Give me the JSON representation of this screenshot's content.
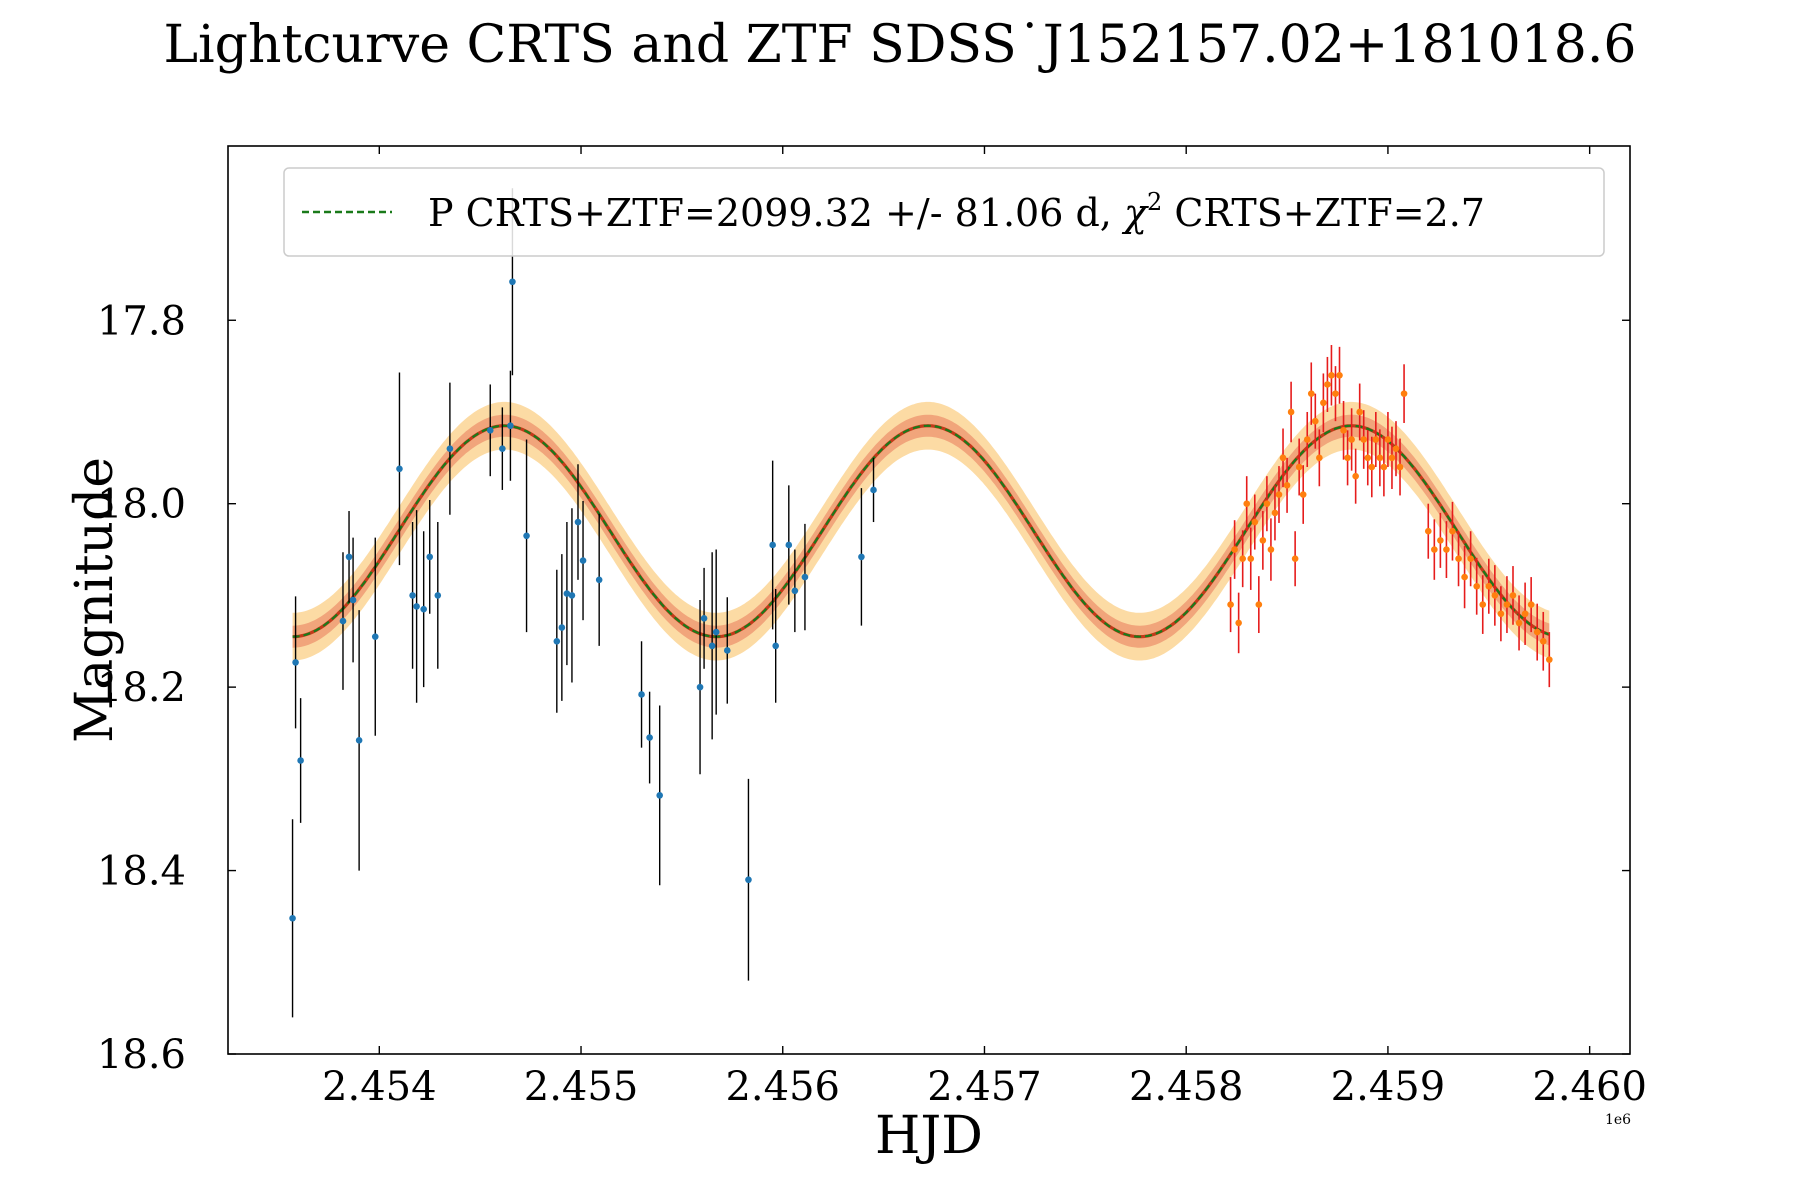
{
  "chart_data": {
    "type": "scatter",
    "title": "Lightcurve CRTS and ZTF SDSS˙J152157.02+181018.6",
    "xlabel": "HJD",
    "ylabel": "Magnitude",
    "x_offset_label": "1e6",
    "x_offset": 2450000,
    "xlim": [
      3250,
      10200
    ],
    "ylim": [
      18.6,
      17.61
    ],
    "y_inverted": true,
    "xticks": [
      4000,
      5000,
      6000,
      7000,
      8000,
      9000,
      10000
    ],
    "xtick_labels": [
      "2.454",
      "2.455",
      "2.456",
      "2.457",
      "2.458",
      "2.459",
      "2.460"
    ],
    "yticks": [
      17.8,
      18.0,
      18.2,
      18.4,
      18.6
    ],
    "ytick_labels": [
      "17.8",
      "18.0",
      "18.2",
      "18.4",
      "18.6"
    ],
    "legend": {
      "position": "top-right",
      "label_prefix": "P CRTS+ZTF=2099.32 +/- 81.06 d, ",
      "chi_symbol": "χ",
      "chi_exp": "2",
      "label_suffix": " CRTS+ZTF=2.7"
    },
    "model": {
      "name": "P CRTS+ZTF",
      "period_days": 2099.32,
      "period_err_days": 81.06,
      "chi2": 2.7,
      "mean_mag": 18.03,
      "amplitude": 0.115,
      "peak_hjd": 4620,
      "x_start": 3570,
      "x_end": 9800,
      "color": "#1a7a1a",
      "band_inner_color": "#e8785a",
      "band_outer_color": "#fcd79a"
    },
    "series": [
      {
        "name": "CRTS",
        "marker_color": "#1f77b4",
        "errorbar_color": "#000000",
        "points": [
          [
            3570,
            18.452,
            0.108
          ],
          [
            3585,
            18.173,
            0.072
          ],
          [
            3610,
            18.28,
            0.068
          ],
          [
            3820,
            18.128,
            0.075
          ],
          [
            3850,
            18.058,
            0.05
          ],
          [
            3870,
            18.105,
            0.068
          ],
          [
            3900,
            18.258,
            0.142
          ],
          [
            3980,
            18.145,
            0.108
          ],
          [
            4100,
            17.962,
            0.105
          ],
          [
            4165,
            18.1,
            0.08
          ],
          [
            4185,
            18.112,
            0.105
          ],
          [
            4220,
            18.115,
            0.085
          ],
          [
            4250,
            18.058,
            0.062
          ],
          [
            4290,
            18.1,
            0.08
          ],
          [
            4350,
            17.94,
            0.072
          ],
          [
            4550,
            17.92,
            0.05
          ],
          [
            4610,
            17.94,
            0.045
          ],
          [
            4650,
            17.915,
            0.06
          ],
          [
            4660,
            17.758,
            0.102
          ],
          [
            4730,
            18.035,
            0.105
          ],
          [
            4880,
            18.15,
            0.078
          ],
          [
            4905,
            18.135,
            0.08
          ],
          [
            4930,
            18.098,
            0.078
          ],
          [
            4955,
            18.1,
            0.095
          ],
          [
            4985,
            18.02,
            0.063
          ],
          [
            5010,
            18.062,
            0.065
          ],
          [
            5090,
            18.083,
            0.072
          ],
          [
            5300,
            18.208,
            0.058
          ],
          [
            5340,
            18.255,
            0.05
          ],
          [
            5390,
            18.318,
            0.098
          ],
          [
            5590,
            18.2,
            0.095
          ],
          [
            5610,
            18.125,
            0.055
          ],
          [
            5650,
            18.155,
            0.102
          ],
          [
            5670,
            18.14,
            0.09
          ],
          [
            5725,
            18.16,
            0.058
          ],
          [
            5830,
            18.41,
            0.11
          ],
          [
            5950,
            18.045,
            0.092
          ],
          [
            5965,
            18.155,
            0.062
          ],
          [
            6030,
            18.045,
            0.065
          ],
          [
            6060,
            18.095,
            0.045
          ],
          [
            6110,
            18.08,
            0.058
          ],
          [
            6390,
            18.058,
            0.075
          ],
          [
            6450,
            17.985,
            0.035
          ]
        ]
      },
      {
        "name": "ZTF",
        "marker_color": "#ff7f0e",
        "errorbar_color": "#e61c1c",
        "points": [
          [
            8220,
            18.11,
            0.03
          ],
          [
            8240,
            18.05,
            0.032
          ],
          [
            8260,
            18.13,
            0.033
          ],
          [
            8280,
            18.06,
            0.031
          ],
          [
            8300,
            18.0,
            0.03
          ],
          [
            8320,
            18.06,
            0.034
          ],
          [
            8340,
            18.02,
            0.03
          ],
          [
            8360,
            18.11,
            0.031
          ],
          [
            8380,
            18.04,
            0.032
          ],
          [
            8400,
            18.0,
            0.03
          ],
          [
            8420,
            18.05,
            0.034
          ],
          [
            8440,
            18.01,
            0.03
          ],
          [
            8460,
            17.99,
            0.031
          ],
          [
            8480,
            17.95,
            0.032
          ],
          [
            8500,
            17.98,
            0.03
          ],
          [
            8520,
            17.9,
            0.033
          ],
          [
            8540,
            18.06,
            0.03
          ],
          [
            8560,
            17.96,
            0.031
          ],
          [
            8580,
            17.99,
            0.032
          ],
          [
            8600,
            17.93,
            0.03
          ],
          [
            8620,
            17.88,
            0.034
          ],
          [
            8640,
            17.91,
            0.03
          ],
          [
            8660,
            17.95,
            0.031
          ],
          [
            8680,
            17.89,
            0.032
          ],
          [
            8700,
            17.87,
            0.03
          ],
          [
            8720,
            17.86,
            0.033
          ],
          [
            8740,
            17.88,
            0.03
          ],
          [
            8760,
            17.86,
            0.031
          ],
          [
            8780,
            17.92,
            0.032
          ],
          [
            8800,
            17.95,
            0.03
          ],
          [
            8820,
            17.93,
            0.034
          ],
          [
            8840,
            17.97,
            0.03
          ],
          [
            8860,
            17.9,
            0.031
          ],
          [
            8880,
            17.93,
            0.032
          ],
          [
            8900,
            17.95,
            0.03
          ],
          [
            8920,
            17.96,
            0.033
          ],
          [
            8940,
            17.93,
            0.03
          ],
          [
            8960,
            17.95,
            0.031
          ],
          [
            8980,
            17.96,
            0.032
          ],
          [
            9000,
            17.93,
            0.03
          ],
          [
            9020,
            17.95,
            0.034
          ],
          [
            9040,
            17.94,
            0.03
          ],
          [
            9060,
            17.96,
            0.031
          ],
          [
            9080,
            17.88,
            0.032
          ],
          [
            9200,
            18.03,
            0.03
          ],
          [
            9230,
            18.05,
            0.033
          ],
          [
            9260,
            18.04,
            0.03
          ],
          [
            9290,
            18.05,
            0.031
          ],
          [
            9320,
            18.03,
            0.032
          ],
          [
            9350,
            18.06,
            0.03
          ],
          [
            9380,
            18.08,
            0.034
          ],
          [
            9410,
            18.06,
            0.03
          ],
          [
            9440,
            18.09,
            0.031
          ],
          [
            9470,
            18.11,
            0.032
          ],
          [
            9500,
            18.09,
            0.03
          ],
          [
            9530,
            18.1,
            0.033
          ],
          [
            9560,
            18.12,
            0.03
          ],
          [
            9590,
            18.11,
            0.031
          ],
          [
            9620,
            18.1,
            0.032
          ],
          [
            9650,
            18.13,
            0.03
          ],
          [
            9680,
            18.12,
            0.034
          ],
          [
            9710,
            18.11,
            0.03
          ],
          [
            9740,
            18.14,
            0.031
          ],
          [
            9770,
            18.15,
            0.032
          ],
          [
            9800,
            18.17,
            0.03
          ]
        ]
      }
    ]
  }
}
